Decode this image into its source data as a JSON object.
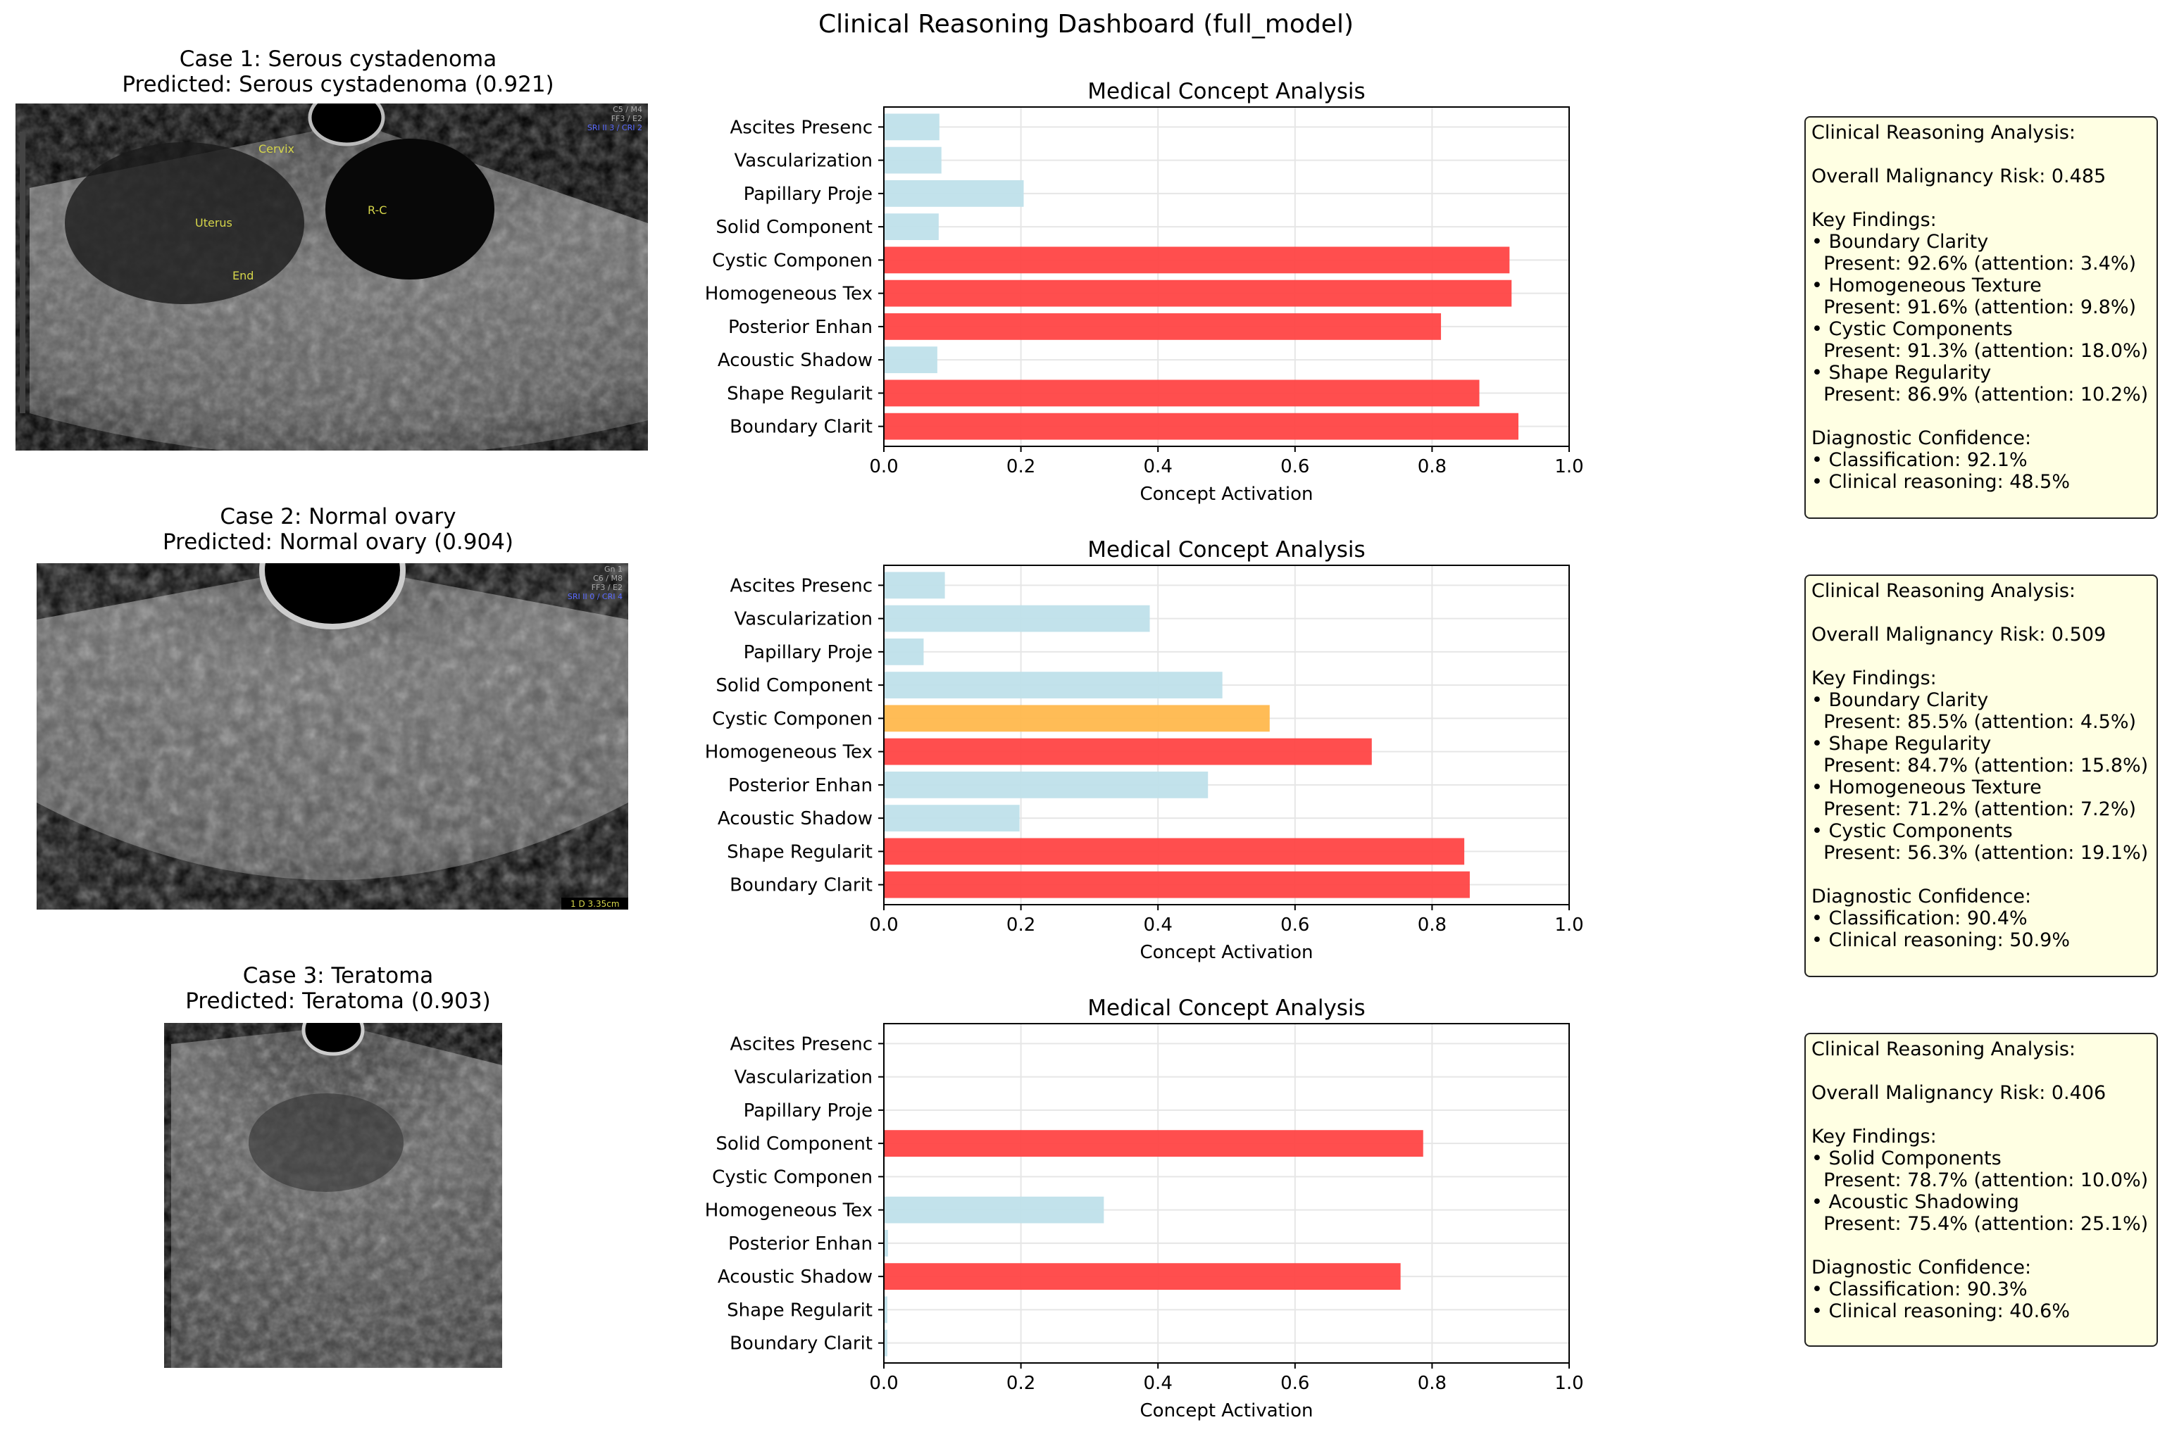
{
  "suptitle": "Clinical Reasoning Dashboard (full_model)",
  "cases": [
    {
      "title": "Case 1: Serous cystadenoma",
      "predicted": "Predicted: Serous cystadenoma (0.921)",
      "image": {
        "scan_labels": [
          "Cervix",
          "Uterus",
          "End",
          "R-C"
        ],
        "corner_text": [
          "C5 / M4",
          "FF3 / E2",
          "SRI II 3 / CRI 2"
        ]
      },
      "reasoning_lines": [
        "Clinical Reasoning Analysis:",
        "",
        "Overall Malignancy Risk: 0.485",
        "",
        "Key Findings:",
        "• Boundary Clarity",
        "  Present: 92.6% (attention: 3.4%)",
        "• Homogeneous Texture",
        "  Present: 91.6% (attention: 9.8%)",
        "• Cystic Components",
        "  Present: 91.3% (attention: 18.0%)",
        "• Shape Regularity",
        "  Present: 86.9% (attention: 10.2%)",
        "",
        "Diagnostic Confidence:",
        "• Classification: 92.1%",
        "• Clinical reasoning: 48.5%"
      ]
    },
    {
      "title": "Case 2: Normal ovary",
      "predicted": "Predicted: Normal ovary (0.904)",
      "image": {
        "scan_labels": [],
        "corner_text": [
          "Gn  1",
          "C6 / M8",
          "FF3 / E2",
          "SRI II 0 / CRI 4"
        ],
        "measure_text": "1  D 3.35cm"
      },
      "reasoning_lines": [
        "Clinical Reasoning Analysis:",
        "",
        "Overall Malignancy Risk: 0.509",
        "",
        "Key Findings:",
        "• Boundary Clarity",
        "  Present: 85.5% (attention: 4.5%)",
        "• Shape Regularity",
        "  Present: 84.7% (attention: 15.8%)",
        "• Homogeneous Texture",
        "  Present: 71.2% (attention: 7.2%)",
        "• Cystic Components",
        "  Present: 56.3% (attention: 19.1%)",
        "",
        "Diagnostic Confidence:",
        "• Classification: 90.4%",
        "• Clinical reasoning: 50.9%"
      ]
    },
    {
      "title": "Case 3: Teratoma",
      "predicted": "Predicted: Teratoma (0.903)",
      "image": {
        "scan_labels": [],
        "corner_text": []
      },
      "reasoning_lines": [
        "Clinical Reasoning Analysis:",
        "",
        "Overall Malignancy Risk: 0.406",
        "",
        "Key Findings:",
        "• Solid Components",
        "  Present: 78.7% (attention: 10.0%)",
        "• Acoustic Shadowing",
        "  Present: 75.4% (attention: 25.1%)",
        "",
        "Diagnostic Confidence:",
        "• Classification: 90.3%",
        "• Clinical reasoning: 40.6%"
      ]
    }
  ],
  "colors": {
    "high": "#ff4444",
    "medium": "#ffb84d",
    "low": "#bfe0ea",
    "grid": "#e6e6e6",
    "box_bg": "#ffffe3"
  },
  "chart_data": [
    {
      "type": "bar",
      "orientation": "horizontal",
      "title": "Medical Concept Analysis",
      "xlabel": "Concept Activation",
      "xlim": [
        0.0,
        1.0
      ],
      "xticks": [
        "0.0",
        "0.2",
        "0.4",
        "0.6",
        "0.8",
        "1.0"
      ],
      "grid": true,
      "categories": [
        "Boundary Clarit",
        "Shape Regularit",
        "Acoustic Shadow",
        "Posterior Enhan",
        "Homogeneous Tex",
        "Cystic Componen",
        "Solid Component",
        "Papillary Proje",
        "Vascularization",
        "Ascites Presenc"
      ],
      "values": [
        0.926,
        0.869,
        0.078,
        0.813,
        0.916,
        0.913,
        0.08,
        0.204,
        0.084,
        0.081
      ],
      "bar_colors": [
        "high",
        "high",
        "low",
        "high",
        "high",
        "high",
        "low",
        "low",
        "low",
        "low"
      ]
    },
    {
      "type": "bar",
      "orientation": "horizontal",
      "title": "Medical Concept Analysis",
      "xlabel": "Concept Activation",
      "xlim": [
        0.0,
        1.0
      ],
      "xticks": [
        "0.0",
        "0.2",
        "0.4",
        "0.6",
        "0.8",
        "1.0"
      ],
      "grid": true,
      "categories": [
        "Boundary Clarit",
        "Shape Regularit",
        "Acoustic Shadow",
        "Posterior Enhan",
        "Homogeneous Tex",
        "Cystic Componen",
        "Solid Component",
        "Papillary Proje",
        "Vascularization",
        "Ascites Presenc"
      ],
      "values": [
        0.855,
        0.847,
        0.198,
        0.473,
        0.712,
        0.563,
        0.494,
        0.058,
        0.388,
        0.089
      ],
      "bar_colors": [
        "high",
        "high",
        "low",
        "low",
        "high",
        "medium",
        "low",
        "low",
        "low",
        "low"
      ]
    },
    {
      "type": "bar",
      "orientation": "horizontal",
      "title": "Medical Concept Analysis",
      "xlabel": "Concept Activation",
      "xlim": [
        0.0,
        1.0
      ],
      "xticks": [
        "0.0",
        "0.2",
        "0.4",
        "0.6",
        "0.8",
        "1.0"
      ],
      "grid": true,
      "categories": [
        "Boundary Clarit",
        "Shape Regularit",
        "Acoustic Shadow",
        "Posterior Enhan",
        "Homogeneous Tex",
        "Cystic Componen",
        "Solid Component",
        "Papillary Proje",
        "Vascularization",
        "Ascites Presenc"
      ],
      "values": [
        0.005,
        0.005,
        0.754,
        0.006,
        0.321,
        0.0,
        0.787,
        0.0,
        0.0,
        0.0
      ],
      "bar_colors": [
        "low",
        "low",
        "high",
        "low",
        "low",
        "low",
        "high",
        "low",
        "low",
        "low"
      ]
    }
  ]
}
